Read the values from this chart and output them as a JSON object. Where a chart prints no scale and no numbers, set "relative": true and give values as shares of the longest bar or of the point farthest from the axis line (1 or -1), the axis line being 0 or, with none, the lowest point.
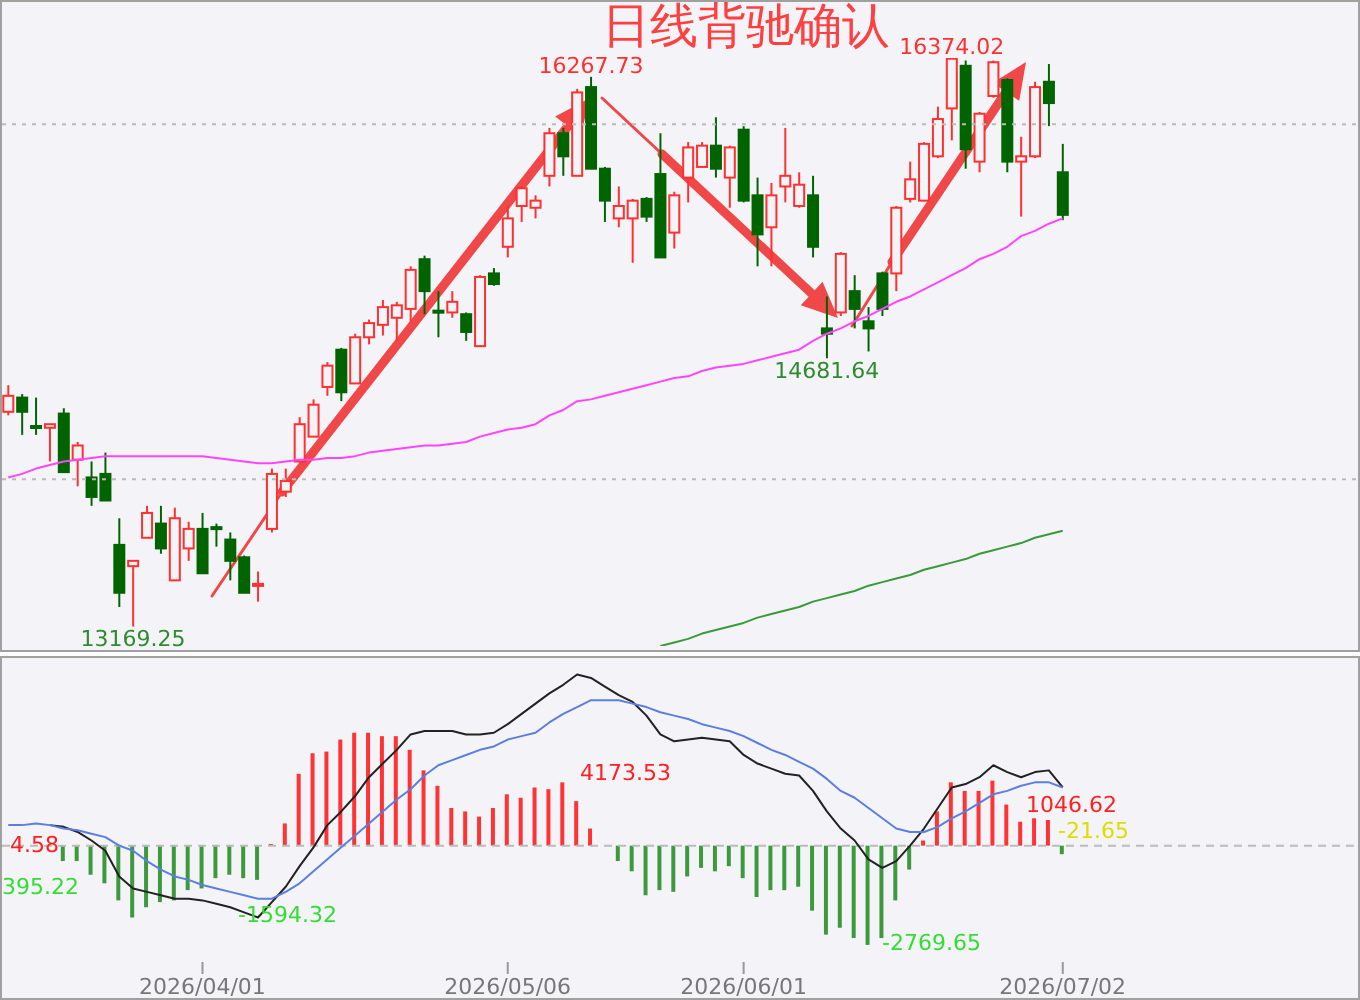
{
  "chart_data": [
    {
      "type": "candlestick",
      "categories": [
        null,
        null,
        null,
        null,
        null,
        null,
        null,
        null,
        null,
        null,
        null,
        null,
        null,
        null,
        "2026/04/01",
        null,
        null,
        null,
        null,
        null,
        null,
        null,
        null,
        null,
        null,
        null,
        null,
        null,
        null,
        null,
        null,
        null,
        null,
        null,
        null,
        null,
        "2026/05/06",
        null,
        null,
        null,
        null,
        null,
        null,
        null,
        null,
        null,
        null,
        null,
        null,
        null,
        null,
        null,
        null,
        "2026/06/01",
        null,
        null,
        null,
        null,
        null,
        null,
        null,
        null,
        null,
        null,
        null,
        null,
        null,
        null,
        null,
        null,
        null,
        null,
        null,
        null,
        null,
        null,
        "2026/07/02"
      ],
      "ohlc": [
        [
          14380,
          14530,
          14360,
          14470
        ],
        [
          14460,
          14480,
          14250,
          14380
        ],
        [
          14300,
          14460,
          14250,
          14290
        ],
        [
          14290,
          14310,
          14100,
          14310
        ],
        [
          14370,
          14400,
          14040,
          14040
        ],
        [
          14110,
          14210,
          13960,
          14190
        ],
        [
          14010,
          14100,
          13850,
          13900
        ],
        [
          14030,
          14150,
          13880,
          13880
        ],
        [
          13630,
          13780,
          13280,
          13360
        ],
        [
          13510,
          13540,
          13169.25,
          13540
        ],
        [
          13670,
          13850,
          13670,
          13810
        ],
        [
          13750,
          13850,
          13580,
          13610
        ],
        [
          13430,
          13840,
          13430,
          13780
        ],
        [
          13610,
          13760,
          13540,
          13720
        ],
        [
          13720,
          13810,
          13470,
          13470
        ],
        [
          13730,
          13750,
          13620,
          13720
        ],
        [
          13660,
          13700,
          13430,
          13540
        ],
        [
          13560,
          13570,
          13360,
          13360
        ],
        [
          13400,
          13480,
          13310,
          13410
        ],
        [
          13720,
          14060,
          13700,
          14030
        ],
        [
          13930,
          14060,
          13900,
          13990
        ],
        [
          14100,
          14350,
          14100,
          14310
        ],
        [
          14240,
          14450,
          14240,
          14420
        ],
        [
          14520,
          14660,
          14470,
          14640
        ],
        [
          14730,
          14740,
          14440,
          14490
        ],
        [
          14540,
          14820,
          14540,
          14800
        ],
        [
          14800,
          14900,
          14760,
          14880
        ],
        [
          14870,
          15010,
          14810,
          14970
        ],
        [
          14910,
          15000,
          14780,
          14980
        ],
        [
          14960,
          15200,
          14890,
          15180
        ],
        [
          15240,
          15260,
          14930,
          15060
        ],
        [
          14950,
          15060,
          14800,
          14940
        ],
        [
          14940,
          15060,
          14910,
          15000
        ],
        [
          14930,
          14940,
          14780,
          14830
        ],
        [
          14750,
          15150,
          14750,
          15140
        ],
        [
          15160,
          15190,
          15090,
          15100
        ],
        [
          15310,
          15540,
          15250,
          15470
        ],
        [
          15540,
          15650,
          15450,
          15640
        ],
        [
          15530,
          15600,
          15470,
          15570
        ],
        [
          15710,
          15980,
          15650,
          15950
        ],
        [
          15950,
          15980,
          15710,
          15820
        ],
        [
          15710,
          16200,
          15710,
          16180
        ],
        [
          16210,
          16267.73,
          15750,
          15750
        ],
        [
          15750,
          15760,
          15450,
          15570
        ],
        [
          15470,
          15650,
          15420,
          15540
        ],
        [
          15470,
          15580,
          15220,
          15570
        ],
        [
          15580,
          15590,
          15450,
          15480
        ],
        [
          15720,
          15950,
          15250,
          15250
        ],
        [
          15390,
          15620,
          15300,
          15600
        ],
        [
          15700,
          15900,
          15560,
          15870
        ],
        [
          15760,
          15900,
          15760,
          15880
        ],
        [
          15880,
          16040,
          15700,
          15750
        ],
        [
          15700,
          15880,
          15530,
          15870
        ],
        [
          15970,
          15990,
          15560,
          15570
        ],
        [
          15600,
          15700,
          15200,
          15380
        ],
        [
          15420,
          15670,
          15200,
          15600
        ],
        [
          15650,
          15980,
          15560,
          15710
        ],
        [
          15540,
          15730,
          15530,
          15660
        ],
        [
          15600,
          15710,
          15250,
          15310
        ],
        [
          14850,
          15030,
          14681.64,
          14820
        ],
        [
          14940,
          15280,
          14920,
          15270
        ],
        [
          15060,
          15150,
          14850,
          14960
        ],
        [
          14890,
          14970,
          14720,
          14850
        ],
        [
          15160,
          15170,
          14920,
          14960
        ],
        [
          15160,
          15540,
          15060,
          15530
        ],
        [
          15580,
          15790,
          15560,
          15690
        ],
        [
          15570,
          15900,
          15570,
          15890
        ],
        [
          15820,
          16100,
          15810,
          16030
        ],
        [
          16090,
          16374.02,
          15910,
          16370
        ],
        [
          16330,
          16360,
          15750,
          15860
        ],
        [
          15790,
          16070,
          15730,
          16060
        ],
        [
          16160,
          16360,
          16150,
          16350
        ],
        [
          16250,
          16260,
          15730,
          15790
        ],
        [
          15790,
          15930,
          15480,
          15820
        ],
        [
          15820,
          16240,
          15810,
          16210
        ],
        [
          16240,
          16340,
          15990,
          16120
        ],
        [
          15730,
          15890,
          15460,
          15490
        ]
      ],
      "series": [
        {
          "type": "line",
          "color": "#ff44ff",
          "values": [
            14010,
            14030,
            14060,
            14080,
            14100,
            14110,
            14120,
            14130,
            14130,
            14130,
            14130,
            14130,
            14130,
            14130,
            14130,
            14120,
            14110,
            14100,
            14090,
            14090,
            14100,
            14110,
            14110,
            14120,
            14120,
            14130,
            14150,
            14160,
            14170,
            14180,
            14190,
            14190,
            14200,
            14210,
            14240,
            14260,
            14280,
            14290,
            14310,
            14360,
            14390,
            14440,
            14450,
            14470,
            14490,
            14510,
            14530,
            14550,
            14570,
            14580,
            14610,
            14630,
            14640,
            14650,
            14670,
            14690,
            14710,
            14730,
            14780,
            14820,
            14850,
            14890,
            14920,
            14960,
            15000,
            15030,
            15070,
            15110,
            15150,
            15190,
            15240,
            15270,
            15310,
            15370,
            15400,
            15440,
            15470
          ]
        },
        {
          "type": "line",
          "color": "#3a9a3a",
          "values": [
            null,
            null,
            null,
            null,
            null,
            null,
            null,
            null,
            null,
            null,
            null,
            null,
            null,
            null,
            null,
            null,
            null,
            null,
            null,
            null,
            null,
            null,
            null,
            null,
            null,
            null,
            null,
            null,
            null,
            null,
            null,
            null,
            null,
            null,
            null,
            null,
            null,
            null,
            null,
            null,
            null,
            null,
            null,
            null,
            null,
            null,
            null,
            13060,
            13080,
            13100,
            13130,
            13150,
            13170,
            13190,
            13220,
            13240,
            13260,
            13280,
            13310,
            13330,
            13350,
            13370,
            13400,
            13420,
            13440,
            13460,
            13490,
            13510,
            13530,
            13550,
            13580,
            13600,
            13620,
            13640,
            13670,
            13690,
            13710
          ]
        }
      ],
      "title": "日线背驰确认",
      "yticks": [
        {
          "value": 14000,
          "label": null
        },
        {
          "value": 16000,
          "label": null
        }
      ],
      "grid": "y",
      "tick_labels": false,
      "annotations": [
        {
          "text": "16267.73",
          "y": 16267.73
        },
        {
          "text": "16374.02",
          "y": 16374.02
        },
        {
          "text": "13169.25",
          "y": 13169.25
        },
        {
          "text": "14681.64",
          "y": 14681.64
        }
      ]
    },
    {
      "type": "bar",
      "relative": true,
      "categories": [
        null,
        null,
        null,
        null,
        null,
        null,
        null,
        null,
        null,
        null,
        null,
        null,
        null,
        null,
        "2026/04/01",
        null,
        null,
        null,
        null,
        null,
        null,
        null,
        null,
        null,
        null,
        null,
        null,
        null,
        null,
        null,
        null,
        null,
        null,
        null,
        null,
        null,
        "2026/05/06",
        null,
        null,
        null,
        null,
        null,
        null,
        null,
        null,
        null,
        null,
        null,
        null,
        null,
        null,
        null,
        null,
        "2026/06/01",
        null,
        null,
        null,
        null,
        null,
        null,
        null,
        null,
        null,
        null,
        null,
        null,
        null,
        null,
        null,
        null,
        null,
        null,
        null,
        null,
        null,
        null,
        "2026/07/02"
      ],
      "series": [
        {
          "type": "bar",
          "values": [
            null,
            null,
            null,
            null,
            -0.09,
            -0.09,
            -0.17,
            -0.22,
            -0.32,
            -0.42,
            -0.36,
            -0.33,
            -0.32,
            -0.26,
            -0.25,
            -0.19,
            -0.17,
            -0.19,
            -0.2,
            0.01,
            0.13,
            0.42,
            0.54,
            0.55,
            0.62,
            0.66,
            0.66,
            0.64,
            0.64,
            0.56,
            0.44,
            0.35,
            0.22,
            0.2,
            0.17,
            0.22,
            0.3,
            0.28,
            0.34,
            0.33,
            0.37,
            0.26,
            0.1,
            null,
            -0.09,
            -0.15,
            -0.29,
            -0.26,
            -0.27,
            -0.18,
            -0.13,
            -0.15,
            -0.12,
            -0.19,
            -0.3,
            -0.26,
            -0.26,
            -0.24,
            -0.38,
            -0.52,
            -0.48,
            -0.54,
            -0.58,
            -0.54,
            -0.32,
            -0.14,
            0.03,
            0.2,
            0.37,
            0.32,
            0.32,
            0.38,
            0.24,
            0.14,
            0.16,
            0.15,
            -0.05
          ],
          "colors": [
            null,
            null,
            null,
            null,
            "#3c9a3c",
            "#3c9a3c",
            "#3c9a3c",
            "#3c9a3c",
            "#3c9a3c",
            "#3c9a3c",
            "#3c9a3c",
            "#3c9a3c",
            "#3c9a3c",
            "#3c9a3c",
            "#3c9a3c",
            "#3c9a3c",
            "#3c9a3c",
            "#3c9a3c",
            "#3c9a3c",
            "#ff3333",
            "#ff3333",
            "#ff3333",
            "#ff3333",
            "#ff3333",
            "#ff3333",
            "#ff3333",
            "#ff3333",
            "#ff3333",
            "#ff3333",
            "#ff3333",
            "#ff3333",
            "#ff3333",
            "#ff3333",
            "#ff3333",
            "#ff3333",
            "#ff3333",
            "#ff3333",
            "#ff3333",
            "#ff3333",
            "#ff3333",
            "#ff3333",
            "#ff3333",
            "#ff3333",
            null,
            "#3c9a3c",
            "#3c9a3c",
            "#3c9a3c",
            "#3c9a3c",
            "#3c9a3c",
            "#3c9a3c",
            "#3c9a3c",
            "#3c9a3c",
            "#3c9a3c",
            "#3c9a3c",
            "#3c9a3c",
            "#3c9a3c",
            "#3c9a3c",
            "#3c9a3c",
            "#3c9a3c",
            "#3c9a3c",
            "#3c9a3c",
            "#3c9a3c",
            "#3c9a3c",
            "#3c9a3c",
            "#3c9a3c",
            "#3c9a3c",
            "#ff3333",
            "#ff3333",
            "#ff3333",
            "#ff3333",
            "#ff3333",
            "#ff3333",
            "#ff3333",
            "#ff3333",
            "#ff3333",
            "#ff3333",
            "#3c9a3c"
          ]
        },
        {
          "type": "line",
          "color": "#222222",
          "values": [
            null,
            null,
            null,
            0.12,
            0.11,
            0.08,
            0.03,
            -0.03,
            -0.18,
            -0.25,
            -0.27,
            -0.29,
            -0.31,
            -0.31,
            -0.32,
            -0.34,
            -0.36,
            -0.39,
            -0.42,
            -0.33,
            -0.24,
            -0.12,
            -0.01,
            0.12,
            0.2,
            0.29,
            0.4,
            0.48,
            0.56,
            0.65,
            0.67,
            0.67,
            0.67,
            0.65,
            0.65,
            0.66,
            0.71,
            0.77,
            0.83,
            0.89,
            0.94,
            1,
            0.98,
            0.93,
            0.88,
            0.84,
            0.76,
            0.65,
            0.61,
            0.62,
            0.63,
            0.62,
            0.61,
            0.53,
            0.48,
            0.45,
            0.42,
            0.41,
            0.32,
            0.2,
            0.1,
            0.03,
            -0.08,
            -0.13,
            -0.09,
            0,
            0.1,
            0.22,
            0.34,
            0.36,
            0.4,
            0.47,
            0.43,
            0.4,
            0.43,
            0.44,
            0.34
          ]
        },
        {
          "type": "line",
          "color": "#5b7fe0",
          "values": [
            0.12,
            0.12,
            0.13,
            0.12,
            0.1,
            0.09,
            0.07,
            0.05,
            0,
            -0.03,
            -0.09,
            -0.14,
            -0.18,
            -0.2,
            -0.23,
            -0.25,
            -0.27,
            -0.29,
            -0.31,
            -0.31,
            -0.27,
            -0.22,
            -0.15,
            -0.08,
            -0.01,
            0.06,
            0.13,
            0.2,
            0.27,
            0.33,
            0.41,
            0.47,
            0.5,
            0.53,
            0.56,
            0.58,
            0.62,
            0.64,
            0.66,
            0.72,
            0.77,
            0.81,
            0.85,
            0.85,
            0.85,
            0.83,
            0.81,
            0.78,
            0.76,
            0.74,
            0.71,
            0.69,
            0.67,
            0.64,
            0.6,
            0.56,
            0.53,
            0.49,
            0.45,
            0.39,
            0.32,
            0.28,
            0.22,
            0.16,
            0.1,
            0.08,
            0.08,
            0.11,
            0.16,
            0.2,
            0.25,
            0.3,
            0.32,
            0.35,
            0.37,
            0.37,
            0.34
          ]
        }
      ],
      "ref_lines": [
        {
          "axis": "y",
          "value": 0,
          "color": "#bbbbbb",
          "line_style": "dashed"
        }
      ],
      "annotations": [
        "4.58",
        "395.22",
        "-1594.32",
        "4173.53",
        "-2769.65",
        "1046.62",
        "-21.65"
      ]
    }
  ]
}
